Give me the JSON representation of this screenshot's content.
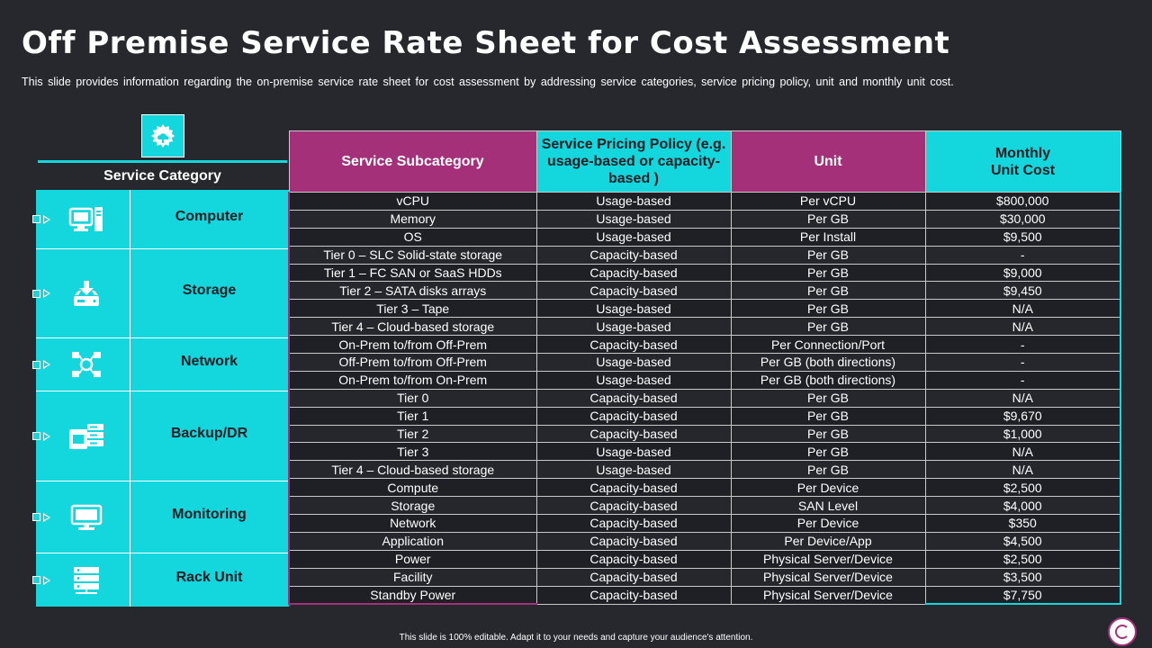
{
  "title": "Off Premise Service Rate Sheet for Cost Assessment",
  "subtitle": "This slide provides information regarding the on-premise service rate sheet for cost assessment by addressing service categories, service pricing policy, unit and monthly unit cost.",
  "category_header": "Service Category",
  "categories": [
    {
      "label": "Computer",
      "icon": "computer-icon"
    },
    {
      "label": "Storage",
      "icon": "storage-download-icon"
    },
    {
      "label": "Network",
      "icon": "network-icon"
    },
    {
      "label": "Backup/DR",
      "icon": "backup-server-icon"
    },
    {
      "label": "Monitoring",
      "icon": "monitor-icon"
    },
    {
      "label": "Rack Unit",
      "icon": "rack-server-icon"
    }
  ],
  "table": {
    "headers": [
      "Service Subcategory",
      "Service Pricing Policy (e.g. usage-based or capacity-based )",
      "Unit",
      "Monthly Unit Cost"
    ],
    "rows": [
      [
        "vCPU",
        "Usage-based",
        "Per vCPU",
        "$800,000"
      ],
      [
        "Memory",
        "Usage-based",
        "Per GB",
        "$30,000"
      ],
      [
        "OS",
        "Usage-based",
        "Per Install",
        "$9,500"
      ],
      [
        "Tier 0 – SLC Solid-state storage",
        "Capacity-based",
        "Per GB",
        "-"
      ],
      [
        "Tier 1 – FC SAN or SaaS HDDs",
        "Capacity-based",
        "Per GB",
        "$9,000"
      ],
      [
        "Tier 2 – SATA disks arrays",
        "Capacity-based",
        "Per GB",
        "$9,450"
      ],
      [
        "Tier 3 – Tape",
        "Usage-based",
        "Per GB",
        "N/A"
      ],
      [
        "Tier 4 – Cloud-based storage",
        "Usage-based",
        "Per GB",
        "N/A"
      ],
      [
        "On-Prem to/from Off-Prem",
        "Capacity-based",
        "Per Connection/Port",
        "-"
      ],
      [
        "Off-Prem to/from Off-Prem",
        "Usage-based",
        "Per GB (both directions)",
        "-"
      ],
      [
        "On-Prem to/from On-Prem",
        "Usage-based",
        "Per GB (both directions)",
        "-"
      ],
      [
        "Tier 0",
        "Capacity-based",
        "Per GB",
        "N/A"
      ],
      [
        "Tier 1",
        "Capacity-based",
        "Per GB",
        "$9,670"
      ],
      [
        "Tier 2",
        "Capacity-based",
        "Per GB",
        "$1,000"
      ],
      [
        "Tier 3",
        "Usage-based",
        "Per GB",
        "N/A"
      ],
      [
        "Tier 4 – Cloud-based storage",
        "Usage-based",
        "Per GB",
        "N/A"
      ],
      [
        "Compute",
        "Capacity-based",
        "Per Device",
        "$2,500"
      ],
      [
        "Storage",
        "Capacity-based",
        "SAN  Level",
        "$4,000"
      ],
      [
        "Network",
        "Capacity-based",
        "Per Device",
        "$350"
      ],
      [
        "Application",
        "Capacity-based",
        "Per Device/App",
        "$4,500"
      ],
      [
        "Power",
        "Capacity-based",
        "Physical Server/Device",
        "$2,500"
      ],
      [
        "Facility",
        "Capacity-based",
        "Physical Server/Device",
        "$3,500"
      ],
      [
        "Standby Power",
        "Capacity-based",
        "Physical Server/Device",
        "$7,750"
      ]
    ]
  },
  "footer": "This slide is 100% editable.  Adapt it to your needs and capture your audience's attention.",
  "colors": {
    "accent_cyan": "#14d6dd",
    "accent_magenta": "#a4307a",
    "background": "#26282d"
  }
}
